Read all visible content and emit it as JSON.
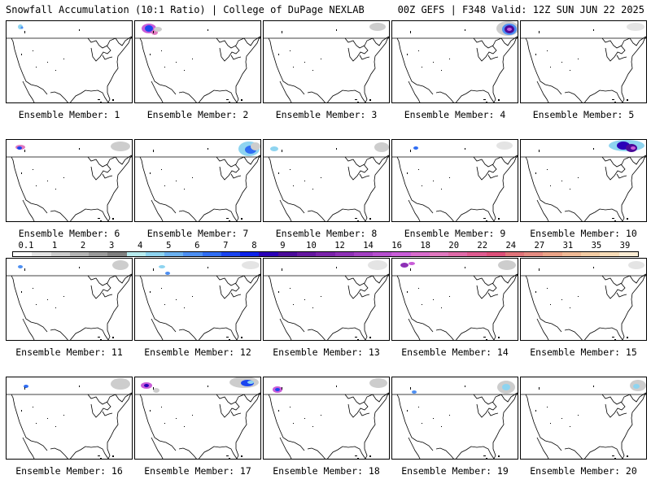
{
  "header": {
    "title": "Snowfall Accumulation (10:1 Ratio) | College of DuPage NEXLAB",
    "run_info": "00Z GEFS | F348 Valid: 12Z SUN JUN 22 2025"
  },
  "colorbar": {
    "labels": [
      "0.1",
      "1",
      "2",
      "3",
      "4",
      "5",
      "6",
      "7",
      "8",
      "9",
      "10",
      "12",
      "14",
      "16",
      "18",
      "20",
      "22",
      "24",
      "27",
      "31",
      "35",
      "39"
    ],
    "colors": [
      "#ffffff",
      "#e4e4e4",
      "#cdcdcd",
      "#b4b4b4",
      "#9a9a9a",
      "#7f7f7f",
      "#b8ecef",
      "#8ed4f0",
      "#6bb1f0",
      "#4d8ff2",
      "#2f6df3",
      "#1b45f0",
      "#0b22ea",
      "#2a00b8",
      "#4a0a9a",
      "#6416a0",
      "#7a22aa",
      "#8e30b6",
      "#a340c2",
      "#b64fce",
      "#c95dd8",
      "#d86ccc",
      "#e078bf",
      "#df6aa8",
      "#de5b90",
      "#dc4f79",
      "#e0747a",
      "#e48c82",
      "#eaa488",
      "#efba96",
      "#f3cca4",
      "#f7dcb8",
      "#faecd4"
    ]
  },
  "members": [
    {
      "label": "Ensemble Member: 1"
    },
    {
      "label": "Ensemble Member: 2"
    },
    {
      "label": "Ensemble Member: 3"
    },
    {
      "label": "Ensemble Member: 4"
    },
    {
      "label": "Ensemble Member: 5"
    },
    {
      "label": "Ensemble Member: 6"
    },
    {
      "label": "Ensemble Member: 7"
    },
    {
      "label": "Ensemble Member: 8"
    },
    {
      "label": "Ensemble Member: 9"
    },
    {
      "label": "Ensemble Member: 10"
    },
    {
      "label": "Ensemble Member: 11"
    },
    {
      "label": "Ensemble Member: 12"
    },
    {
      "label": "Ensemble Member: 13"
    },
    {
      "label": "Ensemble Member: 14"
    },
    {
      "label": "Ensemble Member: 15"
    },
    {
      "label": "Ensemble Member: 16"
    },
    {
      "label": "Ensemble Member: 17"
    },
    {
      "label": "Ensemble Member: 18"
    },
    {
      "label": "Ensemble Member: 19"
    },
    {
      "label": "Ensemble Member: 20"
    }
  ]
}
